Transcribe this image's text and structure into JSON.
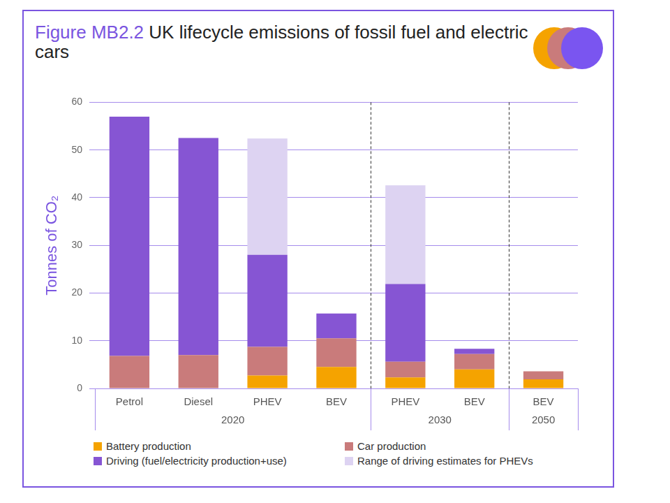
{
  "chart_data": {
    "type": "bar",
    "title": "Figure MB2.2 UK lifecycle emissions of fossil fuel and electric cars",
    "y_label": "Tonnes of CO₂",
    "categories": [
      "Petrol",
      "Diesel",
      "PHEV",
      "BEV",
      "PHEV",
      "BEV",
      "BEV"
    ],
    "group_labels": [
      "2020",
      "2020",
      "2020",
      "2020",
      "2030",
      "2030",
      "2050"
    ],
    "series": [
      {
        "name": "Battery production",
        "color": "#f5a300",
        "values": [
          null,
          null,
          2.7,
          4.5,
          2.3,
          4.0,
          1.9
        ]
      },
      {
        "name": "Car production",
        "color": "#c97b7b",
        "values": [
          6.8,
          7.0,
          6.0,
          6.0,
          3.3,
          3.2,
          1.7
        ]
      },
      {
        "name": "Driving (fuel/electricity production+use)",
        "color": "#8655d3",
        "values": [
          50.2,
          45.5,
          19.3,
          5.2,
          16.3,
          1.1,
          null
        ]
      },
      {
        "name": "Range of driving estimates for PHEVs",
        "color": "#ddd3f2",
        "values": [
          null,
          null,
          24.4,
          null,
          20.7,
          null,
          null
        ]
      }
    ],
    "ylim": [
      0,
      60
    ],
    "yticks": [
      0,
      10,
      20,
      30,
      40,
      50,
      60
    ],
    "grid": true,
    "stacked": true,
    "legend": "bottom"
  }
}
